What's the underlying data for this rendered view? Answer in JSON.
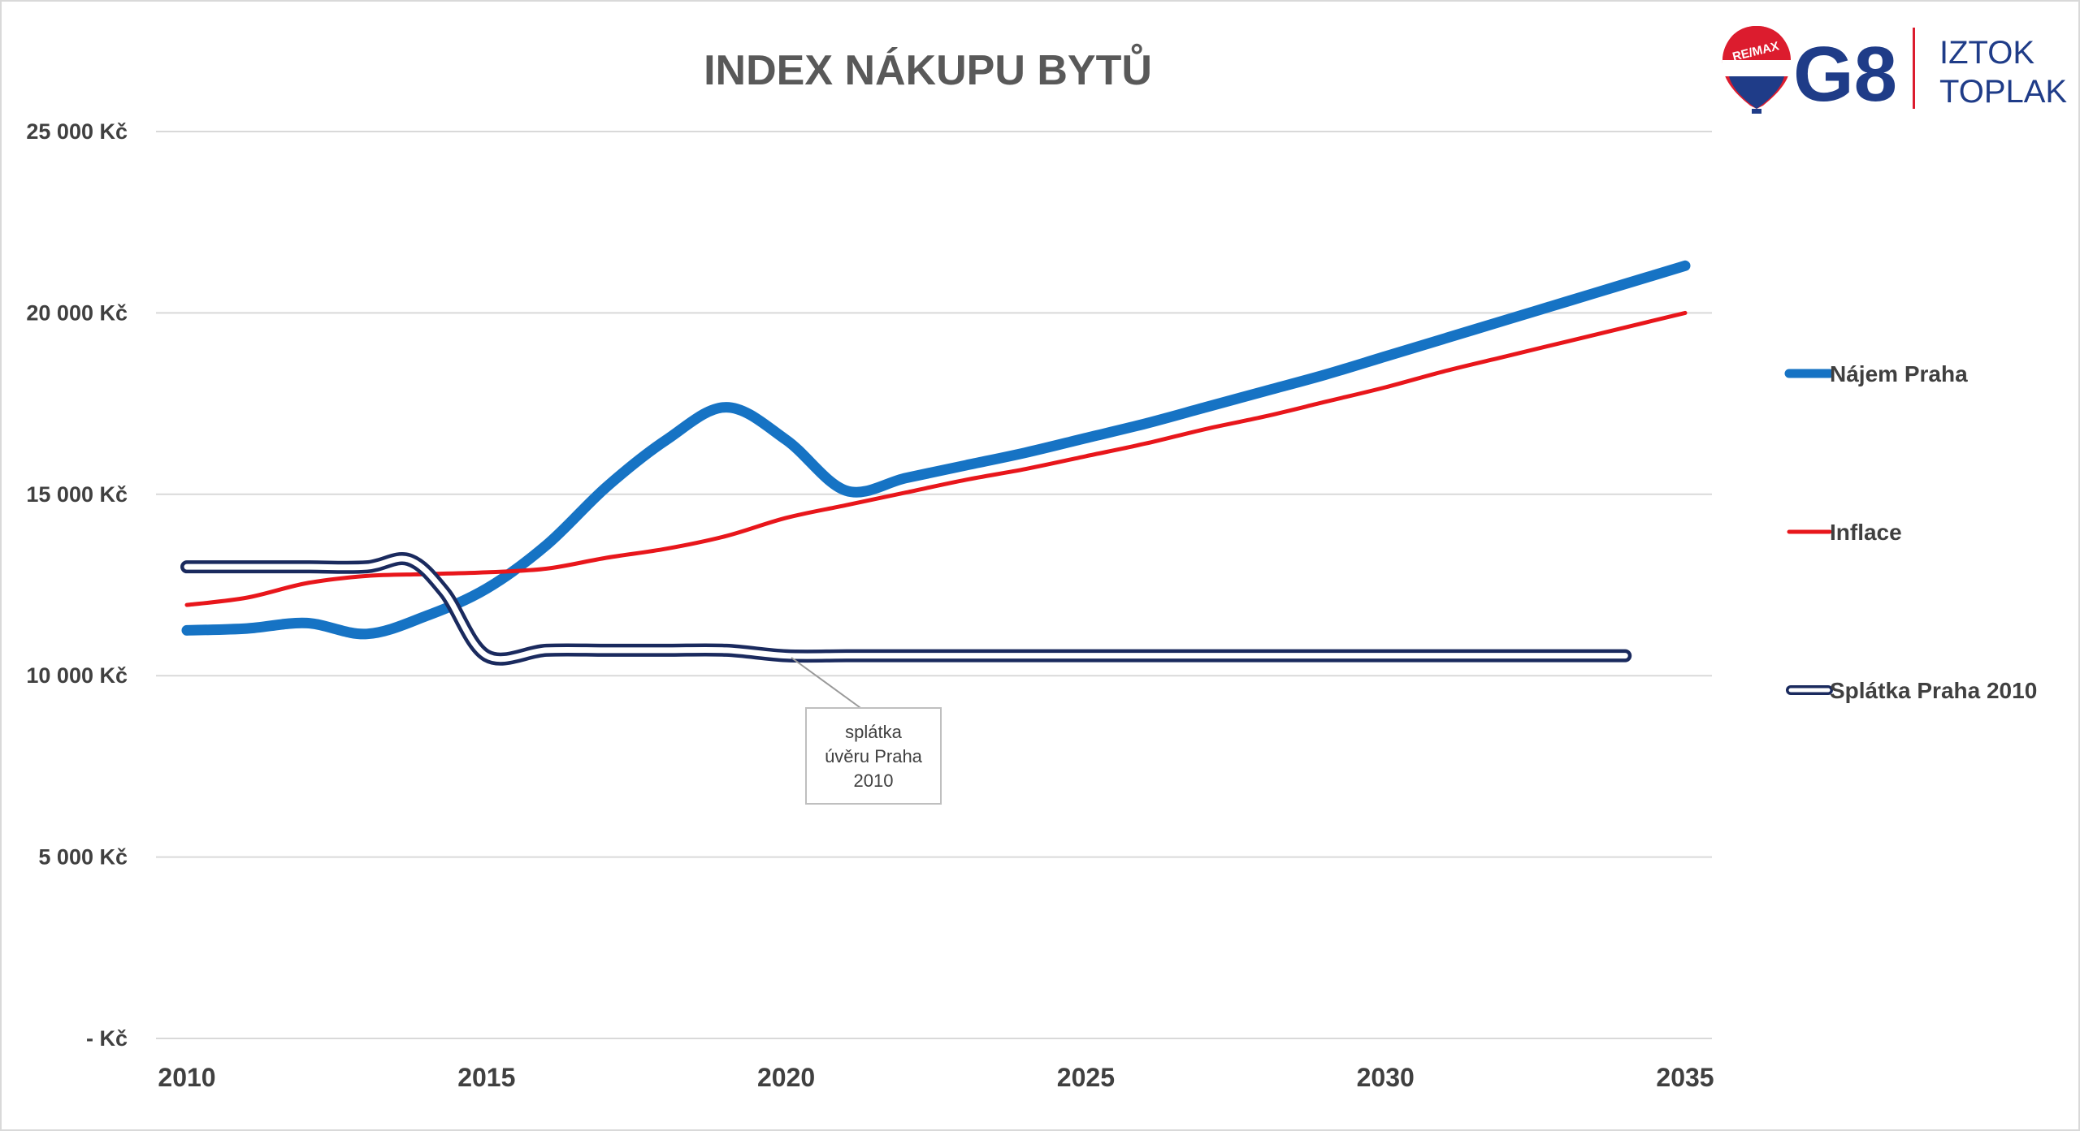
{
  "logo": {
    "balloon_text": "RE/MAX",
    "brand": "G8",
    "name_line1": "IZTOK",
    "name_line2": "TOPLAK"
  },
  "annotation": {
    "lines": [
      "splátka",
      "úvěru Praha",
      "2010"
    ]
  },
  "colors": {
    "najem": "#1673c4",
    "inflace": "#e8161b",
    "splatka": "#1a2a5e",
    "grid": "#d9d9d9"
  },
  "chart_data": {
    "type": "line",
    "title": "INDEX NÁKUPU BYTŮ",
    "xlabel": "",
    "ylabel": "",
    "xlim": [
      2010,
      2035
    ],
    "ylim": [
      0,
      25000
    ],
    "x_ticks": [
      "2010",
      "2015",
      "2020",
      "2025",
      "2030",
      "2035"
    ],
    "y_ticks": [
      {
        "value": 0,
        "label": "-   Kč"
      },
      {
        "value": 5000,
        "label": "5 000 Kč"
      },
      {
        "value": 10000,
        "label": "10 000 Kč"
      },
      {
        "value": 15000,
        "label": "15 000 Kč"
      },
      {
        "value": 20000,
        "label": "20 000 Kč"
      },
      {
        "value": 25000,
        "label": "25 000 Kč"
      }
    ],
    "grid": true,
    "legend_position": "right",
    "series": [
      {
        "name": "Nájem Praha",
        "style": "thick",
        "points": [
          [
            2010,
            11250
          ],
          [
            2011,
            11300
          ],
          [
            2012,
            11450
          ],
          [
            2013,
            11150
          ],
          [
            2014,
            11650
          ],
          [
            2015,
            12400
          ],
          [
            2016,
            13600
          ],
          [
            2017,
            15200
          ],
          [
            2018,
            16500
          ],
          [
            2019,
            17400
          ],
          [
            2020,
            16500
          ],
          [
            2021,
            15100
          ],
          [
            2022,
            15450
          ],
          [
            2023,
            15800
          ],
          [
            2024,
            16150
          ],
          [
            2025,
            16550
          ],
          [
            2026,
            16950
          ],
          [
            2027,
            17400
          ],
          [
            2028,
            17850
          ],
          [
            2029,
            18300
          ],
          [
            2030,
            18800
          ],
          [
            2031,
            19300
          ],
          [
            2032,
            19800
          ],
          [
            2033,
            20300
          ],
          [
            2034,
            20800
          ],
          [
            2035,
            21300
          ]
        ]
      },
      {
        "name": "Inflace",
        "style": "thin",
        "points": [
          [
            2010,
            11950
          ],
          [
            2011,
            12150
          ],
          [
            2012,
            12550
          ],
          [
            2013,
            12750
          ],
          [
            2014,
            12800
          ],
          [
            2015,
            12850
          ],
          [
            2016,
            12950
          ],
          [
            2017,
            13250
          ],
          [
            2018,
            13500
          ],
          [
            2019,
            13850
          ],
          [
            2020,
            14350
          ],
          [
            2021,
            14700
          ],
          [
            2022,
            15050
          ],
          [
            2023,
            15400
          ],
          [
            2024,
            15700
          ],
          [
            2025,
            16050
          ],
          [
            2026,
            16400
          ],
          [
            2027,
            16800
          ],
          [
            2028,
            17150
          ],
          [
            2029,
            17550
          ],
          [
            2030,
            17950
          ],
          [
            2031,
            18400
          ],
          [
            2032,
            18800
          ],
          [
            2033,
            19200
          ],
          [
            2034,
            19600
          ],
          [
            2035,
            20000
          ]
        ]
      },
      {
        "name": "Splátka Praha 2010",
        "style": "double",
        "points": [
          [
            2010,
            13000
          ],
          [
            2011,
            13000
          ],
          [
            2012,
            13000
          ],
          [
            2013,
            13000
          ],
          [
            2013.7,
            13200
          ],
          [
            2014.3,
            12300
          ],
          [
            2015,
            10550
          ],
          [
            2016,
            10700
          ],
          [
            2017,
            10700
          ],
          [
            2018,
            10700
          ],
          [
            2019,
            10700
          ],
          [
            2020,
            10550
          ],
          [
            2021,
            10550
          ],
          [
            2022,
            10550
          ],
          [
            2023,
            10550
          ],
          [
            2024,
            10550
          ],
          [
            2025,
            10550
          ],
          [
            2026,
            10550
          ],
          [
            2027,
            10550
          ],
          [
            2028,
            10550
          ],
          [
            2029,
            10550
          ],
          [
            2030,
            10550
          ],
          [
            2031,
            10550
          ],
          [
            2032,
            10550
          ],
          [
            2033,
            10550
          ],
          [
            2034,
            10550
          ]
        ]
      }
    ]
  }
}
